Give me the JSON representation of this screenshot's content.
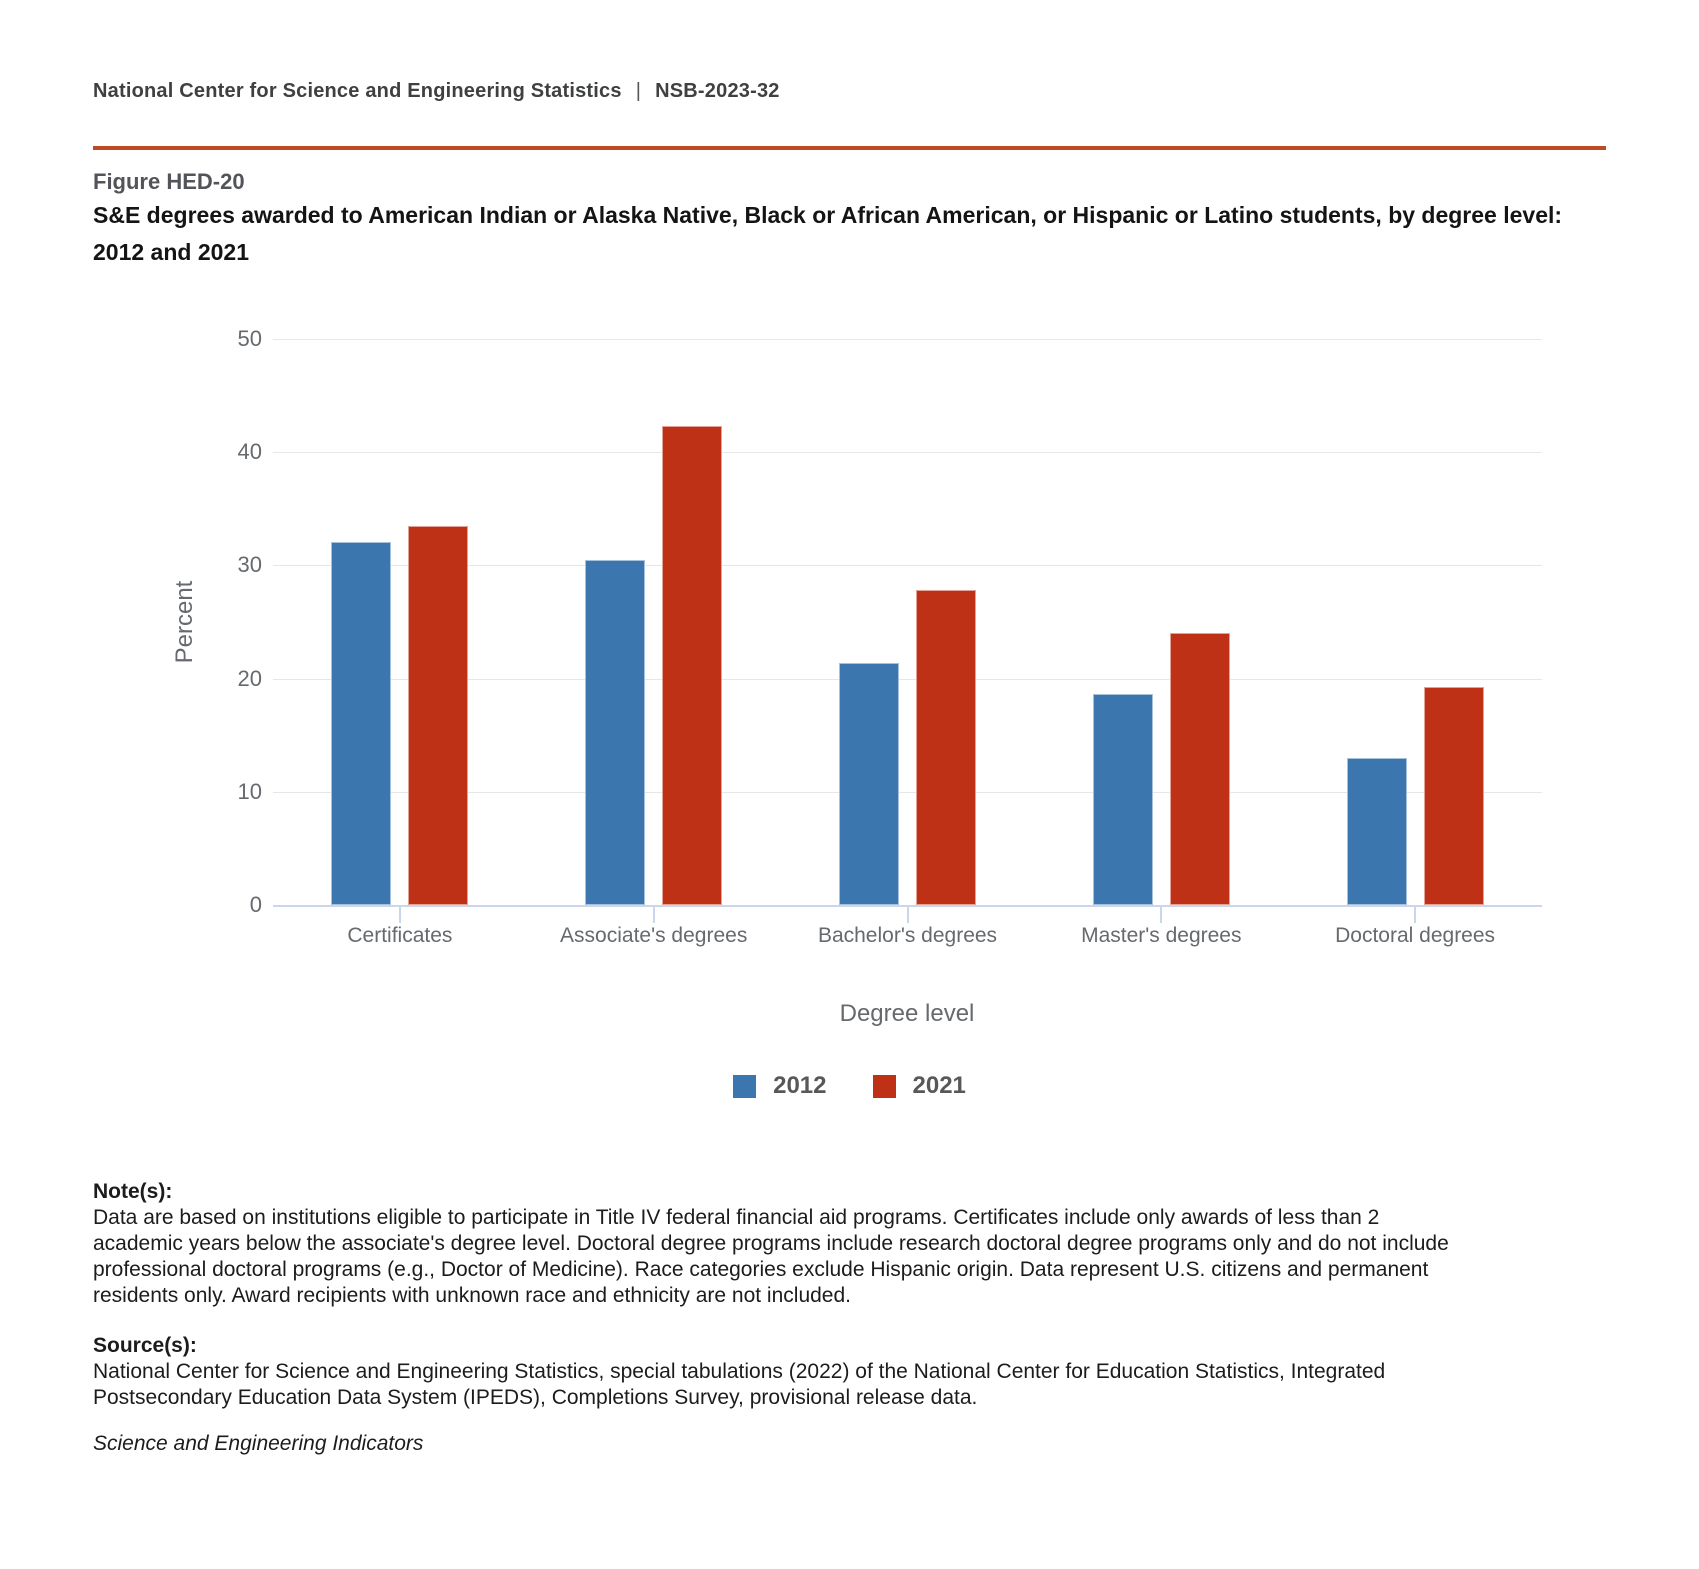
{
  "page": {
    "header": {
      "left": "National Center for Science and Engineering Statistics",
      "divider": "|",
      "right": "NSB-2023-32"
    },
    "figure_label": "Figure HED-20",
    "title_lines": [
      "S&E degrees awarded to American Indian or Alaska Native, Black or African American, or Hispanic or Latino students, by degree level:",
      "2012 and 2021"
    ]
  },
  "colors": {
    "accent_rule": "#BD4B26",
    "series_2012": "#3B76AF",
    "series_2021": "#BF3117",
    "gridline": "#E7E7E7",
    "axis_line": "#CCD6EB",
    "axis_text": "#66696E",
    "legend_text": "#58585A"
  },
  "chart_data": {
    "type": "bar",
    "title": "",
    "categories": [
      "Certificates",
      "Associate's degrees",
      "Bachelor's degrees",
      "Master's degrees",
      "Doctoral degrees"
    ],
    "series": [
      {
        "name": "2012",
        "color": "#3B76AF",
        "values": [
          32.1,
          30.5,
          21.4,
          18.6,
          13.0
        ]
      },
      {
        "name": "2021",
        "color": "#BF3117",
        "values": [
          33.5,
          42.3,
          27.8,
          24.0,
          19.3
        ]
      }
    ],
    "xlabel": "Degree level",
    "ylabel": "Percent",
    "ylim": [
      0,
      50
    ],
    "yticks": [
      0,
      10,
      20,
      30,
      40,
      50
    ],
    "grid": true,
    "legend_position": "bottom"
  },
  "notes": {
    "label": "Note(s):",
    "lines": [
      "Data are based on institutions eligible to participate in Title IV federal financial aid programs. Certificates include only awards of less than 2",
      "academic years below the associate's degree level. Doctoral degree programs include research doctoral degree programs only and do not include",
      "professional doctoral programs (e.g., Doctor of Medicine). Race categories exclude Hispanic origin. Data represent U.S. citizens and permanent",
      "residents only. Award recipients with unknown race and ethnicity are not included."
    ]
  },
  "sources": {
    "label": "Source(s):",
    "lines": [
      "National Center for Science and Engineering Statistics, special tabulations (2022) of the National Center for Education Statistics, Integrated",
      "Postsecondary Education Data System (IPEDS), Completions Survey, provisional release data."
    ]
  },
  "tagline": "Science and Engineering Indicators"
}
